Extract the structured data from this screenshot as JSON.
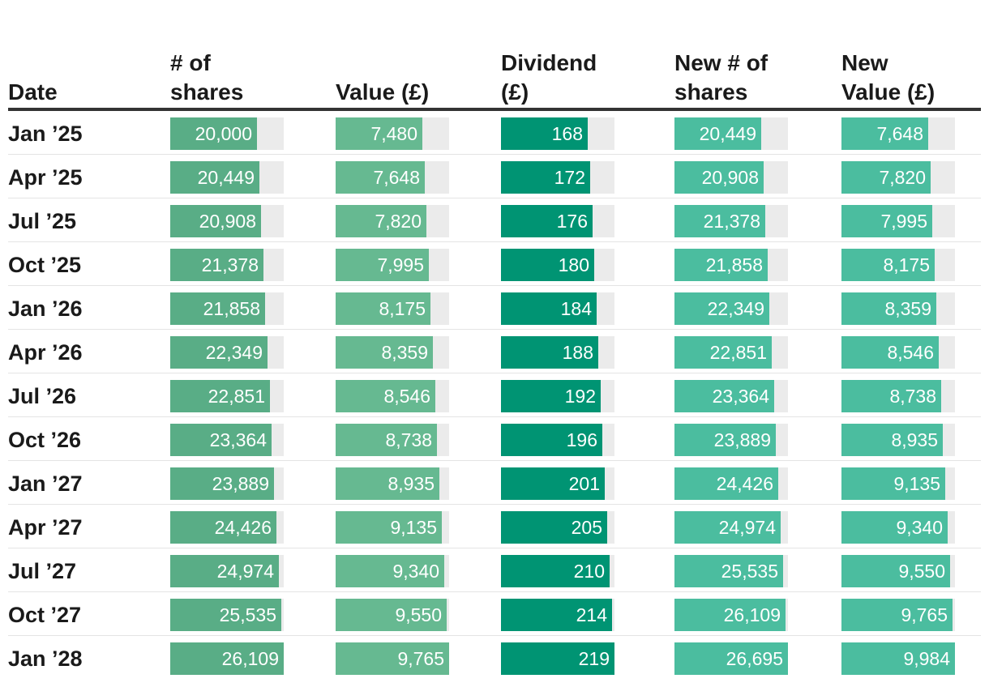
{
  "chart_data": {
    "type": "table",
    "columns": [
      "Date",
      "# of shares",
      "Value (£)",
      "Dividend (£)",
      "New # of shares",
      "New Value (£)"
    ],
    "colors": [
      "#59ad86",
      "#66b991",
      "#009473",
      "#4bbd9f",
      "#4bbd9f"
    ],
    "max_values": [
      26109,
      9765,
      219,
      26695,
      9984
    ],
    "rows": [
      {
        "date": "Jan ’25",
        "values": [
          20000,
          7480,
          168,
          20449,
          7648
        ],
        "labels": [
          "20,000",
          "7,480",
          "168",
          "20,449",
          "7,648"
        ]
      },
      {
        "date": "Apr ’25",
        "values": [
          20449,
          7648,
          172,
          20908,
          7820
        ],
        "labels": [
          "20,449",
          "7,648",
          "172",
          "20,908",
          "7,820"
        ]
      },
      {
        "date": "Jul ’25",
        "values": [
          20908,
          7820,
          176,
          21378,
          7995
        ],
        "labels": [
          "20,908",
          "7,820",
          "176",
          "21,378",
          "7,995"
        ]
      },
      {
        "date": "Oct ’25",
        "values": [
          21378,
          7995,
          180,
          21858,
          8175
        ],
        "labels": [
          "21,378",
          "7,995",
          "180",
          "21,858",
          "8,175"
        ]
      },
      {
        "date": "Jan ’26",
        "values": [
          21858,
          8175,
          184,
          22349,
          8359
        ],
        "labels": [
          "21,858",
          "8,175",
          "184",
          "22,349",
          "8,359"
        ]
      },
      {
        "date": "Apr ’26",
        "values": [
          22349,
          8359,
          188,
          22851,
          8546
        ],
        "labels": [
          "22,349",
          "8,359",
          "188",
          "22,851",
          "8,546"
        ]
      },
      {
        "date": "Jul ’26",
        "values": [
          22851,
          8546,
          192,
          23364,
          8738
        ],
        "labels": [
          "22,851",
          "8,546",
          "192",
          "23,364",
          "8,738"
        ]
      },
      {
        "date": "Oct ’26",
        "values": [
          23364,
          8738,
          196,
          23889,
          8935
        ],
        "labels": [
          "23,364",
          "8,738",
          "196",
          "23,889",
          "8,935"
        ]
      },
      {
        "date": "Jan ’27",
        "values": [
          23889,
          8935,
          201,
          24426,
          9135
        ],
        "labels": [
          "23,889",
          "8,935",
          "201",
          "24,426",
          "9,135"
        ]
      },
      {
        "date": "Apr ’27",
        "values": [
          24426,
          9135,
          205,
          24974,
          9340
        ],
        "labels": [
          "24,426",
          "9,135",
          "205",
          "24,974",
          "9,340"
        ]
      },
      {
        "date": "Jul ’27",
        "values": [
          24974,
          9340,
          210,
          25535,
          9550
        ],
        "labels": [
          "24,974",
          "9,340",
          "210",
          "25,535",
          "9,550"
        ]
      },
      {
        "date": "Oct ’27",
        "values": [
          25535,
          9550,
          214,
          26109,
          9765
        ],
        "labels": [
          "25,535",
          "9,550",
          "214",
          "26,109",
          "9,765"
        ]
      },
      {
        "date": "Jan ’28",
        "values": [
          26109,
          9765,
          219,
          26695,
          9984
        ],
        "labels": [
          "26,109",
          "9,765",
          "219",
          "26,695",
          "9,984"
        ]
      }
    ]
  },
  "header": {
    "date": "Date",
    "shares": [
      "# of",
      "shares"
    ],
    "value": [
      "Value (£)"
    ],
    "dividend": [
      "Dividend",
      "(£)"
    ],
    "new_shares": [
      "New # of",
      "shares"
    ],
    "new_value": [
      "New",
      "Value (£)"
    ]
  }
}
